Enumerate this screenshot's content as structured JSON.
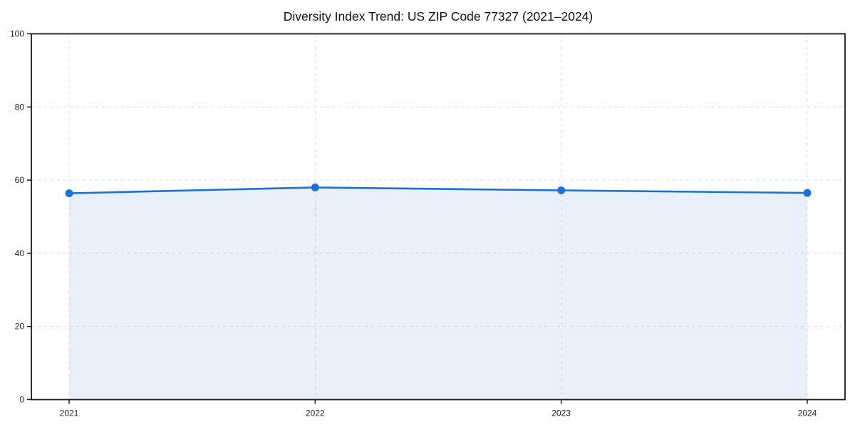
{
  "chart_data": {
    "type": "area",
    "title": "Diversity Index Trend: US ZIP Code 77327 (2021–2024)",
    "x": [
      2021,
      2022,
      2023,
      2024
    ],
    "series": [
      {
        "name": "Diversity Index",
        "values": [
          56.4,
          58.0,
          57.2,
          56.5
        ]
      }
    ],
    "xlabel": "",
    "ylabel": "",
    "ylim": [
      0,
      100
    ],
    "yticks": [
      0,
      20,
      40,
      60,
      80,
      100
    ],
    "grid": true,
    "legend": "none",
    "line_color": "#1d6ed6",
    "fill_color": "#1d6ed6",
    "fill_opacity": 0.1,
    "grid_color": "#dcdcdc",
    "axis_color": "#1a1a1a",
    "tick_label_color": "#222222"
  }
}
